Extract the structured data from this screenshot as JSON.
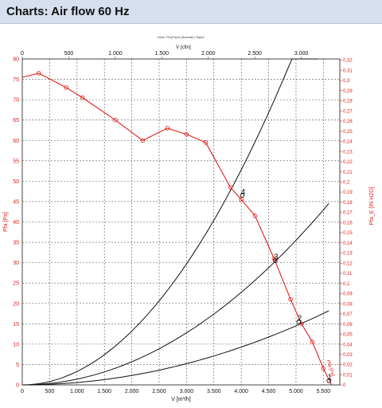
{
  "header": {
    "title": "Charts: Air flow 60 Hz"
  },
  "chart_data": {
    "type": "line",
    "title": "Dens= Pfa [Pa]  Air [Nominal] 1.2kg/m³",
    "xlabel_bottom": "V [m³/h]",
    "xlabel_top": "V [cfm]",
    "ylabel_left": "Pfa [Pa]",
    "ylabel_right": "Pfa_E [IN H2O]",
    "x_bottom_lim": [
      0,
      5800
    ],
    "y_left_lim": [
      0,
      80
    ],
    "x_top_ticks": [
      {
        "value": 0,
        "label": "0"
      },
      {
        "value": 500,
        "label": "500"
      },
      {
        "value": 1000,
        "label": "1.000"
      },
      {
        "value": 1500,
        "label": "1.500"
      },
      {
        "value": 2000,
        "label": "2.000"
      },
      {
        "value": 2500,
        "label": "2.500"
      },
      {
        "value": 3000,
        "label": "3.000"
      }
    ],
    "x_bottom_ticks": [
      {
        "value": 0,
        "label": "0"
      },
      {
        "value": 500,
        "label": "500"
      },
      {
        "value": 1000,
        "label": "1.000"
      },
      {
        "value": 1500,
        "label": "1.500"
      },
      {
        "value": 2000,
        "label": "2.000"
      },
      {
        "value": 2500,
        "label": "2.500"
      },
      {
        "value": 3000,
        "label": "3.000"
      },
      {
        "value": 3500,
        "label": "3.500"
      },
      {
        "value": 4000,
        "label": "4.000"
      },
      {
        "value": 4500,
        "label": "4.500"
      },
      {
        "value": 5000,
        "label": "5.000"
      },
      {
        "value": 5500,
        "label": "5.500"
      }
    ],
    "y_left_ticks": [
      {
        "value": 0,
        "label": "0"
      },
      {
        "value": 5,
        "label": "5"
      },
      {
        "value": 10,
        "label": "10"
      },
      {
        "value": 15,
        "label": "15"
      },
      {
        "value": 20,
        "label": "20"
      },
      {
        "value": 25,
        "label": "25"
      },
      {
        "value": 30,
        "label": "30"
      },
      {
        "value": 35,
        "label": "35"
      },
      {
        "value": 40,
        "label": "40"
      },
      {
        "value": 45,
        "label": "45"
      },
      {
        "value": 50,
        "label": "50"
      },
      {
        "value": 55,
        "label": "55"
      },
      {
        "value": 60,
        "label": "60"
      },
      {
        "value": 65,
        "label": "65"
      },
      {
        "value": 70,
        "label": "70"
      },
      {
        "value": 75,
        "label": "75"
      },
      {
        "value": 80,
        "label": "80"
      }
    ],
    "y_right_ticks": [
      {
        "value": 0.0,
        "label": "0"
      },
      {
        "value": 0.01,
        "label": "0,01"
      },
      {
        "value": 0.02,
        "label": "0,02"
      },
      {
        "value": 0.03,
        "label": "0,03"
      },
      {
        "value": 0.04,
        "label": "0,04"
      },
      {
        "value": 0.05,
        "label": "0,05"
      },
      {
        "value": 0.06,
        "label": "0,06"
      },
      {
        "value": 0.07,
        "label": "0,07"
      },
      {
        "value": 0.08,
        "label": "0,08"
      },
      {
        "value": 0.09,
        "label": "0,09"
      },
      {
        "value": 0.1,
        "label": "0,1"
      },
      {
        "value": 0.11,
        "label": "0,11"
      },
      {
        "value": 0.12,
        "label": "0,12"
      },
      {
        "value": 0.13,
        "label": "0,13"
      },
      {
        "value": 0.14,
        "label": "0,14"
      },
      {
        "value": 0.15,
        "label": "0,15"
      },
      {
        "value": 0.16,
        "label": "0,16"
      },
      {
        "value": 0.17,
        "label": "0,17"
      },
      {
        "value": 0.18,
        "label": "0,18"
      },
      {
        "value": 0.19,
        "label": "0,19"
      },
      {
        "value": 0.2,
        "label": "0,2"
      },
      {
        "value": 0.21,
        "label": "0,21"
      },
      {
        "value": 0.22,
        "label": "0,22"
      },
      {
        "value": 0.23,
        "label": "0,23"
      },
      {
        "value": 0.24,
        "label": "0,24"
      },
      {
        "value": 0.25,
        "label": "0,25"
      },
      {
        "value": 0.26,
        "label": "0,26"
      },
      {
        "value": 0.27,
        "label": "0,27"
      },
      {
        "value": 0.28,
        "label": "0,28"
      },
      {
        "value": 0.29,
        "label": "0,29"
      },
      {
        "value": 0.3,
        "label": "0,3"
      },
      {
        "value": 0.31,
        "label": "0,31"
      },
      {
        "value": 0.32,
        "label": "0,32"
      }
    ],
    "grid": true,
    "series": [
      {
        "label": "Pfa [Pa]",
        "color": "#e0201c",
        "kind": "fan-curve",
        "x": [
          0,
          300,
          800,
          1100,
          1700,
          2200,
          2650,
          3000,
          3350,
          3800,
          4000,
          4250,
          4600,
          4900,
          5100,
          5300,
          5500,
          5650
        ],
        "y": [
          75.5,
          76.5,
          73,
          70.5,
          65,
          60,
          63,
          61.5,
          59.5,
          48.5,
          45.5,
          41.5,
          31,
          21,
          15,
          10.5,
          4,
          0
        ]
      },
      {
        "kind": "system-curve",
        "color": "#111111",
        "k": 3.3e-06,
        "x_max": 5400
      },
      {
        "kind": "system-curve",
        "color": "#111111",
        "k": 1.42e-06,
        "x_max": 5600
      },
      {
        "kind": "system-curve",
        "color": "#111111",
        "k": 5.8e-07,
        "x_max": 5600
      }
    ],
    "markers": [
      {
        "label": "1",
        "x": 5600,
        "y": 1
      },
      {
        "label": "2",
        "x": 5050,
        "y": 15.5
      },
      {
        "label": "3",
        "x": 4620,
        "y": 30.5
      },
      {
        "label": "4",
        "x": 4020,
        "y": 46.5
      }
    ],
    "curve_label": "Pfa [Pa]"
  },
  "colors": {
    "red": "#e0201c",
    "header_bg": "#d5dfed",
    "grid": "#555555"
  }
}
